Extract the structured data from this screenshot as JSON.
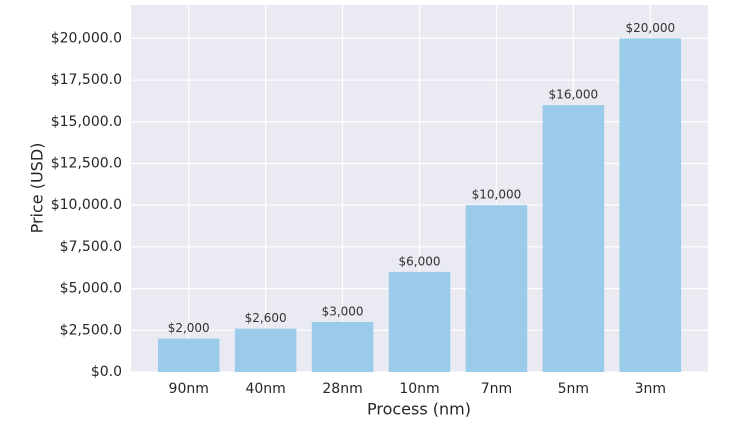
{
  "chart_data": {
    "type": "bar",
    "x_label": "Process (nm)",
    "y_label": "Price (USD)",
    "categories": [
      "90nm",
      "40nm",
      "28nm",
      "10nm",
      "7nm",
      "5nm",
      "3nm"
    ],
    "values": [
      2000,
      2600,
      3000,
      6000,
      10000,
      16000,
      20000
    ],
    "value_labels": [
      "$2,000",
      "$2,600",
      "$3,000",
      "$6,000",
      "$10,000",
      "$16,000",
      "$20,000"
    ],
    "color": "#9bcbeb",
    "ylim": [
      0,
      22000
    ],
    "yticks": [
      {
        "value": 0,
        "label": "$0.0"
      },
      {
        "value": 2500,
        "label": "$2,500.0"
      },
      {
        "value": 5000,
        "label": "$5,000.0"
      },
      {
        "value": 7500,
        "label": "$7,500.0"
      },
      {
        "value": 10000,
        "label": "$10,000.0"
      },
      {
        "value": 12500,
        "label": "$12,500.0"
      },
      {
        "value": 15000,
        "label": "$15,000.0"
      },
      {
        "value": 17500,
        "label": "$17,500.0"
      },
      {
        "value": 20000,
        "label": "$20,000.0"
      }
    ],
    "grid": true
  }
}
